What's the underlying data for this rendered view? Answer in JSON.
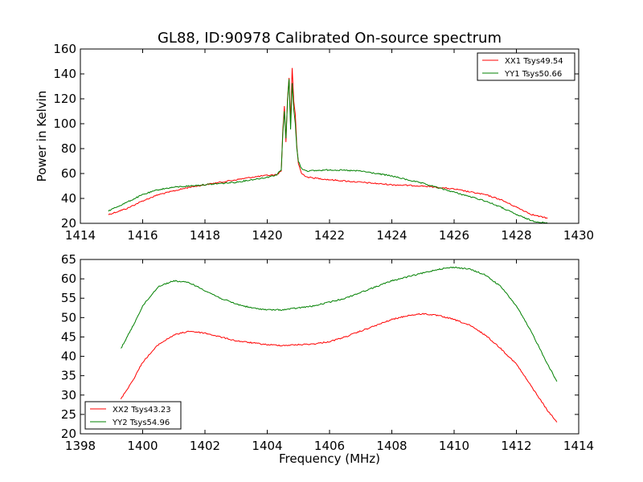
{
  "title": "GL88, ID:90978 Calibrated On-source spectrum",
  "chart_data": [
    {
      "type": "line",
      "title": "GL88, ID:90978 Calibrated On-source spectrum",
      "xlabel": "",
      "ylabel": "Power in Kelvin",
      "xlim": [
        1414,
        1430
      ],
      "ylim": [
        20,
        160
      ],
      "xticks": [
        1414,
        1416,
        1418,
        1420,
        1422,
        1424,
        1426,
        1428,
        1430
      ],
      "yticks": [
        20,
        40,
        60,
        80,
        100,
        120,
        140,
        160
      ],
      "legend_position": "top-right",
      "series": [
        {
          "name": "XX1 Tsys49.54",
          "color": "#ff0000",
          "points": [
            [
              1414.9,
              27
            ],
            [
              1415.5,
              32
            ],
            [
              1416,
              38
            ],
            [
              1416.5,
              43
            ],
            [
              1417,
              46
            ],
            [
              1417.5,
              49
            ],
            [
              1418,
              51
            ],
            [
              1418.5,
              53
            ],
            [
              1419,
              55
            ],
            [
              1419.5,
              57
            ],
            [
              1420,
              58.5
            ],
            [
              1420.3,
              59
            ],
            [
              1420.45,
              62
            ],
            [
              1420.5,
              95
            ],
            [
              1420.55,
              114
            ],
            [
              1420.6,
              85
            ],
            [
              1420.65,
              120
            ],
            [
              1420.7,
              137
            ],
            [
              1420.75,
              100
            ],
            [
              1420.8,
              145
            ],
            [
              1420.85,
              118
            ],
            [
              1420.9,
              108
            ],
            [
              1420.95,
              82
            ],
            [
              1421,
              68
            ],
            [
              1421.1,
              60
            ],
            [
              1421.3,
              57
            ],
            [
              1422,
              55
            ],
            [
              1423,
              53
            ],
            [
              1424,
              51
            ],
            [
              1425,
              50
            ],
            [
              1426,
              47.5
            ],
            [
              1427,
              43
            ],
            [
              1427.5,
              39
            ],
            [
              1428,
              33
            ],
            [
              1428.5,
              27
            ],
            [
              1429,
              24
            ]
          ]
        },
        {
          "name": "YY1 Tsys50.66",
          "color": "#008000",
          "points": [
            [
              1414.9,
              30
            ],
            [
              1415.5,
              37
            ],
            [
              1416,
              43
            ],
            [
              1416.5,
              47
            ],
            [
              1417,
              49
            ],
            [
              1417.5,
              50
            ],
            [
              1418,
              51
            ],
            [
              1418.5,
              52
            ],
            [
              1419,
              53
            ],
            [
              1419.5,
              55
            ],
            [
              1420,
              57
            ],
            [
              1420.3,
              59
            ],
            [
              1420.45,
              63
            ],
            [
              1420.5,
              92
            ],
            [
              1420.55,
              110
            ],
            [
              1420.6,
              88
            ],
            [
              1420.65,
              118
            ],
            [
              1420.7,
              136
            ],
            [
              1420.75,
              95
            ],
            [
              1420.8,
              133
            ],
            [
              1420.85,
              112
            ],
            [
              1420.9,
              100
            ],
            [
              1420.95,
              80
            ],
            [
              1421,
              70
            ],
            [
              1421.1,
              64
            ],
            [
              1421.3,
              62
            ],
            [
              1422,
              63
            ],
            [
              1423,
              62
            ],
            [
              1424,
              58
            ],
            [
              1425,
              52
            ],
            [
              1426,
              45
            ],
            [
              1427,
              38
            ],
            [
              1427.5,
              33
            ],
            [
              1428,
              27
            ],
            [
              1428.5,
              22
            ],
            [
              1429,
              20
            ]
          ]
        }
      ]
    },
    {
      "type": "line",
      "title": "",
      "xlabel": "Frequency (MHz)",
      "ylabel": "",
      "xlim": [
        1398,
        1414
      ],
      "ylim": [
        20,
        65
      ],
      "xticks": [
        1398,
        1400,
        1402,
        1404,
        1406,
        1408,
        1410,
        1412,
        1414
      ],
      "yticks": [
        20,
        25,
        30,
        35,
        40,
        45,
        50,
        55,
        60,
        65
      ],
      "legend_position": "bottom-left",
      "series": [
        {
          "name": "XX2 Tsys43.23",
          "color": "#ff0000",
          "points": [
            [
              1399.3,
              29
            ],
            [
              1399.7,
              34
            ],
            [
              1400,
              38.5
            ],
            [
              1400.5,
              43
            ],
            [
              1401,
              45.5
            ],
            [
              1401.5,
              46.5
            ],
            [
              1402,
              46
            ],
            [
              1402.5,
              45
            ],
            [
              1403,
              44
            ],
            [
              1403.5,
              43.5
            ],
            [
              1404,
              43
            ],
            [
              1404.5,
              42.8
            ],
            [
              1405,
              43
            ],
            [
              1405.5,
              43.2
            ],
            [
              1406,
              43.8
            ],
            [
              1406.5,
              45
            ],
            [
              1407,
              46.5
            ],
            [
              1407.5,
              48
            ],
            [
              1408,
              49.5
            ],
            [
              1408.5,
              50.5
            ],
            [
              1409,
              51
            ],
            [
              1409.5,
              50.5
            ],
            [
              1410,
              49.5
            ],
            [
              1410.5,
              48
            ],
            [
              1411,
              45.5
            ],
            [
              1411.5,
              42
            ],
            [
              1412,
              38
            ],
            [
              1412.5,
              32
            ],
            [
              1413,
              26
            ],
            [
              1413.3,
              23
            ]
          ]
        },
        {
          "name": "YY2 Tsys54.96",
          "color": "#008000",
          "points": [
            [
              1399.3,
              42
            ],
            [
              1399.7,
              48
            ],
            [
              1400,
              53
            ],
            [
              1400.5,
              58
            ],
            [
              1401,
              59.5
            ],
            [
              1401.5,
              59
            ],
            [
              1402,
              57
            ],
            [
              1402.5,
              55
            ],
            [
              1403,
              53.5
            ],
            [
              1403.5,
              52.5
            ],
            [
              1404,
              52
            ],
            [
              1404.5,
              52
            ],
            [
              1405,
              52.5
            ],
            [
              1405.5,
              53
            ],
            [
              1406,
              54
            ],
            [
              1406.5,
              55
            ],
            [
              1407,
              56.5
            ],
            [
              1407.5,
              58
            ],
            [
              1408,
              59.5
            ],
            [
              1408.5,
              60.5
            ],
            [
              1409,
              61.5
            ],
            [
              1409.5,
              62.5
            ],
            [
              1410,
              63
            ],
            [
              1410.5,
              62.5
            ],
            [
              1411,
              61
            ],
            [
              1411.5,
              58
            ],
            [
              1412,
              53
            ],
            [
              1412.5,
              46
            ],
            [
              1413,
              38
            ],
            [
              1413.3,
              33.5
            ]
          ]
        }
      ]
    }
  ]
}
